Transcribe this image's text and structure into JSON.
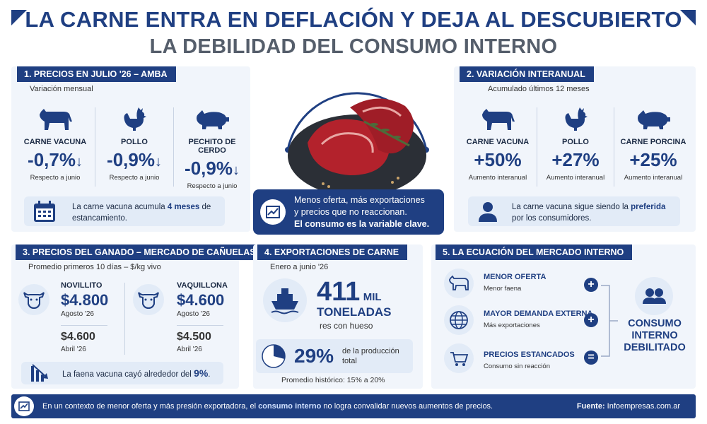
{
  "header": {
    "title_line1": "LA CARNE ENTRA EN DEFLACIÓN Y DEJA AL DESCUBIERTO",
    "title_line2": "LA DEBILIDAD DEL CONSUMO INTERNO"
  },
  "section1": {
    "title": "1. PRECIOS EN JULIO '26 – AMBA",
    "subtitle": "Variación mensual",
    "items": [
      {
        "icon": "cow-icon",
        "label": "CARNE VACUNA",
        "value": "-0,7%",
        "arrow": "↓",
        "note": "Respecto a junio"
      },
      {
        "icon": "chicken-icon",
        "label": "POLLO",
        "value": "-0,9%",
        "arrow": "↓",
        "note": "Respecto a junio"
      },
      {
        "icon": "pig-icon",
        "label": "PECHITO DE CERDO",
        "value": "-0,9%",
        "arrow": "↓",
        "note": "Respecto a junio"
      }
    ],
    "note_pre": "La carne vacuna acumula ",
    "note_bold": "4 meses",
    "note_post": " de estancamiento."
  },
  "center": {
    "icon": "meat-photo",
    "line1": "Menos oferta, más exportaciones",
    "line2": "y precios que no reaccionan.",
    "line3": "El consumo es la variable clave."
  },
  "section2": {
    "title": "2. VARIACIÓN INTERANUAL",
    "subtitle": "Acumulado últimos 12 meses",
    "items": [
      {
        "icon": "cow-icon",
        "label": "CARNE VACUNA",
        "value": "+50%",
        "note": "Aumento interanual"
      },
      {
        "icon": "chicken-icon",
        "label": "POLLO",
        "value": "+27%",
        "note": "Aumento interanual"
      },
      {
        "icon": "pig-icon",
        "label": "CARNE PORCINA",
        "value": "+25%",
        "note": "Aumento interanual"
      }
    ],
    "note_pre": "La carne vacuna sigue siendo la ",
    "note_bold": "preferida",
    "note_post": " por los consumidores."
  },
  "section3": {
    "title": "3. PRECIOS DEL GANADO – MERCADO DE CAÑUELAS",
    "subtitle": "Promedio primeros 10 días – $/kg vivo",
    "items": [
      {
        "icon": "cattle-head-icon",
        "label": "NOVILLITO",
        "value": "$4.800",
        "date": "Agosto '26",
        "prev_value": "$4.600",
        "prev_date": "Abril '26"
      },
      {
        "icon": "cattle-head-icon",
        "label": "VAQUILLONA",
        "value": "$4.600",
        "date": "Agosto '26",
        "prev_value": "$4.500",
        "prev_date": "Abril '26"
      }
    ],
    "note_pre": "La faena vacuna cayó alrededor del ",
    "note_bold": "9%",
    "note_post": "."
  },
  "section4": {
    "title": "4. EXPORTACIONES DE CARNE",
    "subtitle": "Enero a junio '26",
    "big_value": "411",
    "big_unit": "MIL",
    "unit_line": "TONELADAS",
    "unit_sub": "res con hueso",
    "share_value": "29%",
    "share_fraction": 0.29,
    "share_text_line1": "de la producción",
    "share_text_line2": "total",
    "historic": "Promedio histórico: 15% a 20%"
  },
  "section5": {
    "title": "5. LA ECUACIÓN DEL MERCADO INTERNO",
    "items": [
      {
        "icon": "cattle-icon",
        "label": "MENOR OFERTA",
        "sub": "Menor faena",
        "op": "+"
      },
      {
        "icon": "globe-icon",
        "label": "MAYOR DEMANDA EXTERNA",
        "sub": "Más exportaciones",
        "op": "+"
      },
      {
        "icon": "cart-icon",
        "label": "PRECIOS ESTANCADOS",
        "sub": "Consumo sin reacción",
        "op": "="
      }
    ],
    "result_line1": "CONSUMO",
    "result_line2": "INTERNO",
    "result_line3": "DEBILITADO"
  },
  "footer": {
    "text_pre": "En un contexto de menor oferta y más presión exportadora, el ",
    "text_bold": "consumo interno",
    "text_post": " no logra convalidar nuevos aumentos de precios.",
    "source_label": "Fuente:",
    "source": " Infoempresas.com.ar"
  },
  "colors": {
    "primary": "#1f3f82",
    "panel": "#f1f5fb",
    "accent_light": "#e2ebf7"
  }
}
